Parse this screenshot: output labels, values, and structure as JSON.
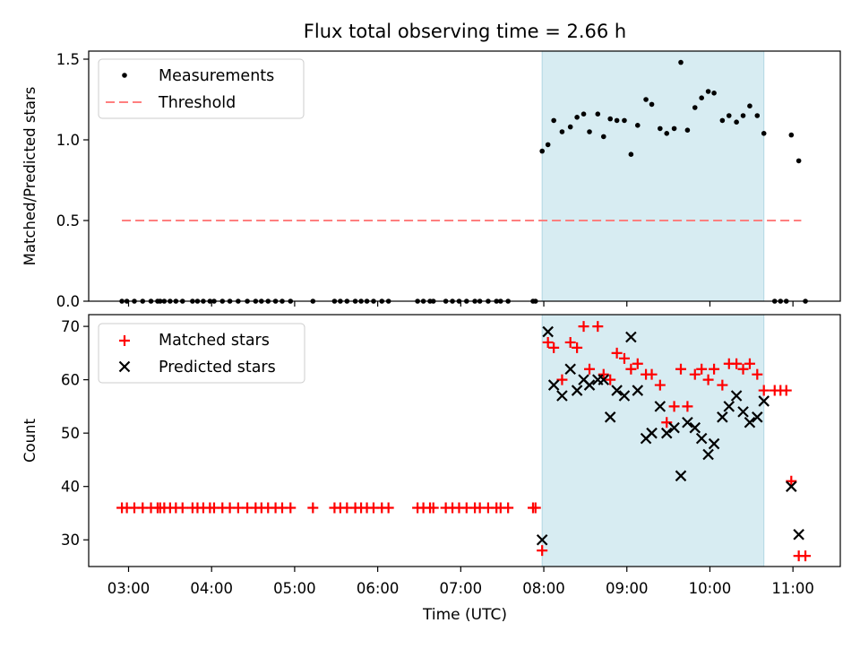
{
  "chart_data": {
    "title": "Flux total observing time = 2.66 h",
    "xlabel": "Time (UTC)",
    "xlim_hours": [
      2.52,
      11.57
    ],
    "xticks": [
      {
        "h": 3,
        "label": "03:00"
      },
      {
        "h": 4,
        "label": "04:00"
      },
      {
        "h": 5,
        "label": "05:00"
      },
      {
        "h": 6,
        "label": "06:00"
      },
      {
        "h": 7,
        "label": "07:00"
      },
      {
        "h": 8,
        "label": "08:00"
      },
      {
        "h": 9,
        "label": "09:00"
      },
      {
        "h": 10,
        "label": "10:00"
      },
      {
        "h": 11,
        "label": "11:00"
      }
    ],
    "shaded_span_hours": [
      7.98,
      10.65
    ],
    "shade_color": "#d3eaf1",
    "panels": [
      {
        "type": "scatter",
        "ylabel": "Matched/Predicted stars",
        "ylim": [
          0,
          1.55
        ],
        "yticks": [
          0.0,
          0.5,
          1.0,
          1.5
        ],
        "ytick_labels": [
          "0.0",
          "0.5",
          "1.0",
          "1.5"
        ],
        "legend": {
          "position": "top-left",
          "items": [
            "Measurements",
            "Threshold"
          ]
        },
        "threshold": {
          "y": 0.5,
          "x_range": [
            2.92,
            11.1
          ],
          "color": "#ff7f7f"
        },
        "measurements": {
          "color": "#000000",
          "x": [
            2.92,
            2.98,
            3.07,
            3.17,
            3.27,
            3.35,
            3.38,
            3.43,
            3.5,
            3.57,
            3.65,
            3.77,
            3.83,
            3.9,
            3.98,
            4.03,
            4.13,
            4.22,
            4.32,
            4.43,
            4.53,
            4.6,
            4.68,
            4.77,
            4.85,
            4.95,
            5.22,
            5.48,
            5.55,
            5.63,
            5.73,
            5.8,
            5.87,
            5.95,
            6.05,
            6.13,
            6.48,
            6.55,
            6.63,
            6.67,
            6.82,
            6.9,
            6.98,
            7.07,
            7.17,
            7.23,
            7.33,
            7.43,
            7.48,
            7.57,
            7.87,
            7.9,
            7.98,
            8.05,
            8.12,
            8.22,
            8.32,
            8.4,
            8.48,
            8.55,
            8.65,
            8.72,
            8.8,
            8.88,
            8.97,
            9.05,
            9.13,
            9.23,
            9.3,
            9.4,
            9.48,
            9.57,
            9.65,
            9.73,
            9.82,
            9.9,
            9.98,
            10.05,
            10.15,
            10.23,
            10.32,
            10.4,
            10.48,
            10.57,
            10.65,
            10.78,
            10.85,
            10.92,
            10.98,
            11.07,
            11.15
          ],
          "y": [
            0,
            0,
            0,
            0,
            0,
            0,
            0,
            0,
            0,
            0,
            0,
            0,
            0,
            0,
            0,
            0,
            0,
            0,
            0,
            0,
            0,
            0,
            0,
            0,
            0,
            0,
            0,
            0,
            0,
            0,
            0,
            0,
            0,
            0,
            0,
            0,
            0,
            0,
            0,
            0,
            0,
            0,
            0,
            0,
            0,
            0,
            0,
            0,
            0,
            0,
            0,
            0,
            0.93,
            0.97,
            1.12,
            1.05,
            1.08,
            1.14,
            1.16,
            1.05,
            1.16,
            1.02,
            1.13,
            1.12,
            1.12,
            0.91,
            1.09,
            1.25,
            1.22,
            1.07,
            1.04,
            1.07,
            1.48,
            1.06,
            1.2,
            1.26,
            1.3,
            1.29,
            1.12,
            1.15,
            1.11,
            1.15,
            1.21,
            1.15,
            1.04,
            0,
            0,
            0,
            1.03,
            0.87,
            0
          ]
        }
      },
      {
        "type": "scatter",
        "ylabel": "Count",
        "ylim": [
          25,
          72.2
        ],
        "yticks": [
          30,
          40,
          50,
          60,
          70
        ],
        "ytick_labels": [
          "30",
          "40",
          "50",
          "60",
          "70"
        ],
        "legend": {
          "position": "top-left",
          "items": [
            "Matched stars",
            "Predicted stars"
          ]
        },
        "matched": {
          "color": "#ff0000",
          "x": [
            2.92,
            2.98,
            3.07,
            3.17,
            3.27,
            3.35,
            3.38,
            3.43,
            3.5,
            3.57,
            3.65,
            3.77,
            3.83,
            3.9,
            3.98,
            4.03,
            4.13,
            4.22,
            4.32,
            4.43,
            4.53,
            4.6,
            4.68,
            4.77,
            4.85,
            4.95,
            5.22,
            5.48,
            5.55,
            5.63,
            5.73,
            5.8,
            5.87,
            5.95,
            6.05,
            6.13,
            6.48,
            6.55,
            6.63,
            6.67,
            6.82,
            6.9,
            6.98,
            7.07,
            7.17,
            7.23,
            7.33,
            7.43,
            7.48,
            7.57,
            7.87,
            7.9,
            7.98,
            8.05,
            8.12,
            8.22,
            8.32,
            8.4,
            8.48,
            8.55,
            8.65,
            8.72,
            8.8,
            8.88,
            8.97,
            9.05,
            9.13,
            9.23,
            9.3,
            9.4,
            9.48,
            9.57,
            9.65,
            9.73,
            9.82,
            9.9,
            9.98,
            10.05,
            10.15,
            10.23,
            10.32,
            10.4,
            10.48,
            10.57,
            10.65,
            10.78,
            10.85,
            10.92,
            10.98,
            11.07,
            11.15
          ],
          "y": [
            36,
            36,
            36,
            36,
            36,
            36,
            36,
            36,
            36,
            36,
            36,
            36,
            36,
            36,
            36,
            36,
            36,
            36,
            36,
            36,
            36,
            36,
            36,
            36,
            36,
            36,
            36,
            36,
            36,
            36,
            36,
            36,
            36,
            36,
            36,
            36,
            36,
            36,
            36,
            36,
            36,
            36,
            36,
            36,
            36,
            36,
            36,
            36,
            36,
            36,
            36,
            36,
            28,
            67,
            66,
            60,
            67,
            66,
            70,
            62,
            70,
            61,
            60,
            65,
            64,
            62,
            63,
            61,
            61,
            59,
            52,
            55,
            62,
            55,
            61,
            62,
            60,
            62,
            59,
            63,
            63,
            62,
            63,
            61,
            58,
            58,
            58,
            58,
            41,
            27,
            27
          ]
        },
        "predicted": {
          "color": "#000000",
          "x": [
            7.98,
            8.05,
            8.12,
            8.22,
            8.32,
            8.4,
            8.48,
            8.55,
            8.65,
            8.72,
            8.8,
            8.88,
            8.97,
            9.05,
            9.13,
            9.23,
            9.3,
            9.4,
            9.48,
            9.57,
            9.65,
            9.73,
            9.82,
            9.9,
            9.98,
            10.05,
            10.15,
            10.23,
            10.32,
            10.4,
            10.48,
            10.57,
            10.65,
            10.98,
            11.07
          ],
          "y": [
            30,
            69,
            59,
            57,
            62,
            58,
            60,
            59,
            60,
            60,
            53,
            58,
            57,
            68,
            58,
            49,
            50,
            55,
            50,
            51,
            42,
            52,
            51,
            49,
            46,
            48,
            53,
            55,
            57,
            54,
            52,
            53,
            56,
            40,
            31
          ]
        }
      }
    ]
  }
}
